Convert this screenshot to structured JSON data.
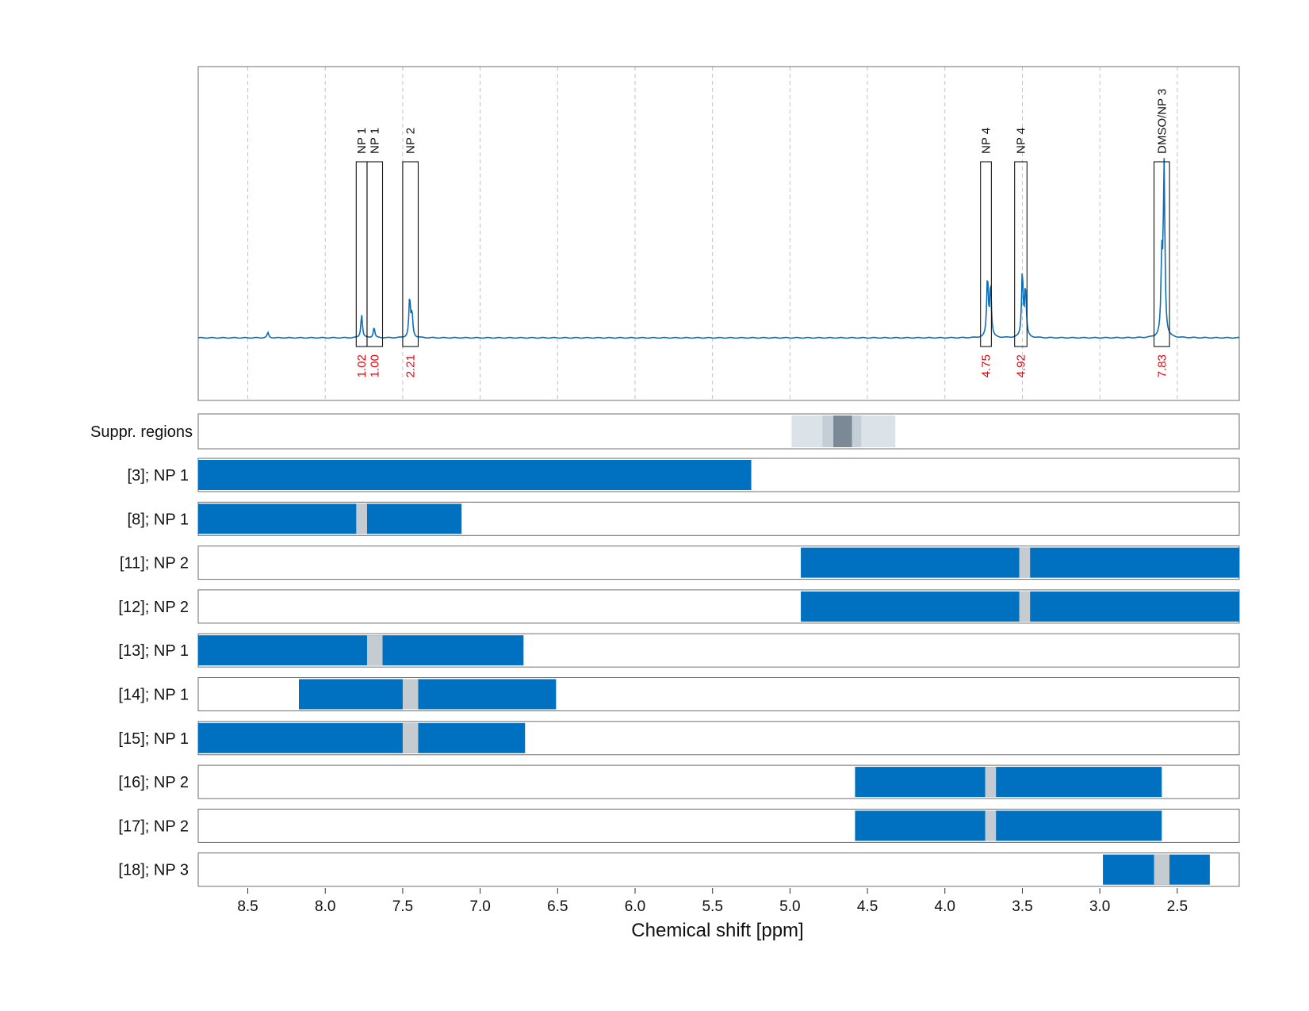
{
  "chart_data": {
    "type": "line",
    "xlabel": "Chemical shift [ppm]",
    "xlim": [
      8.82,
      2.1
    ],
    "x_ticks": [
      8.5,
      8.0,
      7.5,
      7.0,
      6.5,
      6.0,
      5.5,
      5.0,
      4.5,
      4.0,
      3.5,
      3.0,
      2.5
    ],
    "x_tick_labels": [
      "8.5",
      "8.0",
      "7.5",
      "7.0",
      "6.5",
      "6.0",
      "5.5",
      "5.0",
      "4.5",
      "4.0",
      "3.5",
      "3.0",
      "2.5"
    ],
    "grid": "vertical dashed",
    "colors": {
      "spectrum": "#0e6eb8",
      "bar": "#0070c0",
      "gap": "#c4cbd1",
      "integral": "#e8000b",
      "suppr_outer": "#dce3e8",
      "suppr_mid": "#c4ced6",
      "suppr_inner": "#7a8995"
    },
    "spectrum_peaks": [
      {
        "ppm": 8.37,
        "height": 0.02
      },
      {
        "ppm": 7.765,
        "height": 0.09
      },
      {
        "ppm": 7.685,
        "height": 0.04
      },
      {
        "ppm": 7.455,
        "height": 0.15
      },
      {
        "ppm": 7.44,
        "height": 0.09
      },
      {
        "ppm": 3.725,
        "height": 0.23
      },
      {
        "ppm": 3.705,
        "height": 0.2
      },
      {
        "ppm": 3.5,
        "height": 0.25
      },
      {
        "ppm": 3.48,
        "height": 0.19
      },
      {
        "ppm": 2.6,
        "height": 0.28
      },
      {
        "ppm": 2.585,
        "height": 0.65
      }
    ],
    "peak_annotations": [
      {
        "label": "NP 1",
        "ppm_left": 7.8,
        "ppm_right": 7.73,
        "integral": "1.02"
      },
      {
        "label": "NP 1",
        "ppm_left": 7.73,
        "ppm_right": 7.63,
        "integral": "1.00"
      },
      {
        "label": "NP 2",
        "ppm_left": 7.5,
        "ppm_right": 7.4,
        "integral": "2.21"
      },
      {
        "label": "NP 4",
        "ppm_left": 3.77,
        "ppm_right": 3.7,
        "integral": "4.75"
      },
      {
        "label": "NP 4",
        "ppm_left": 3.55,
        "ppm_right": 3.47,
        "integral": "4.92"
      },
      {
        "label": "DMSO/NP 3",
        "ppm_left": 2.65,
        "ppm_right": 2.55,
        "integral": "7.83"
      }
    ],
    "suppression": {
      "label": "Suppr. regions",
      "bands": [
        {
          "from": 4.99,
          "to": 4.32,
          "level": "outer"
        },
        {
          "from": 4.79,
          "to": 4.54,
          "level": "mid"
        },
        {
          "from": 4.72,
          "to": 4.6,
          "level": "inner"
        }
      ]
    },
    "rows": [
      {
        "label": "[3]; NP 1",
        "from": 8.82,
        "to": 5.25,
        "gap": null
      },
      {
        "label": "[8]; NP 1",
        "from": 8.82,
        "to": 7.12,
        "gap": [
          7.8,
          7.73
        ]
      },
      {
        "label": "[11]; NP 2",
        "from": 4.93,
        "to": 2.1,
        "gap": [
          3.52,
          3.45
        ]
      },
      {
        "label": "[12]; NP 2",
        "from": 4.93,
        "to": 2.1,
        "gap": [
          3.52,
          3.45
        ]
      },
      {
        "label": "[13]; NP 1",
        "from": 8.82,
        "to": 6.72,
        "gap": [
          7.73,
          7.63
        ]
      },
      {
        "label": "[14]; NP 1",
        "from": 8.17,
        "to": 6.51,
        "gap": [
          7.5,
          7.4
        ]
      },
      {
        "label": "[15]; NP 1",
        "from": 8.82,
        "to": 6.71,
        "gap": [
          7.5,
          7.4
        ]
      },
      {
        "label": "[16]; NP 2",
        "from": 4.58,
        "to": 2.6,
        "gap": [
          3.74,
          3.67
        ]
      },
      {
        "label": "[17]; NP 2",
        "from": 4.58,
        "to": 2.6,
        "gap": [
          3.74,
          3.67
        ]
      },
      {
        "label": "[18]; NP 3",
        "from": 2.98,
        "to": 2.29,
        "gap": [
          2.65,
          2.55
        ]
      }
    ]
  }
}
